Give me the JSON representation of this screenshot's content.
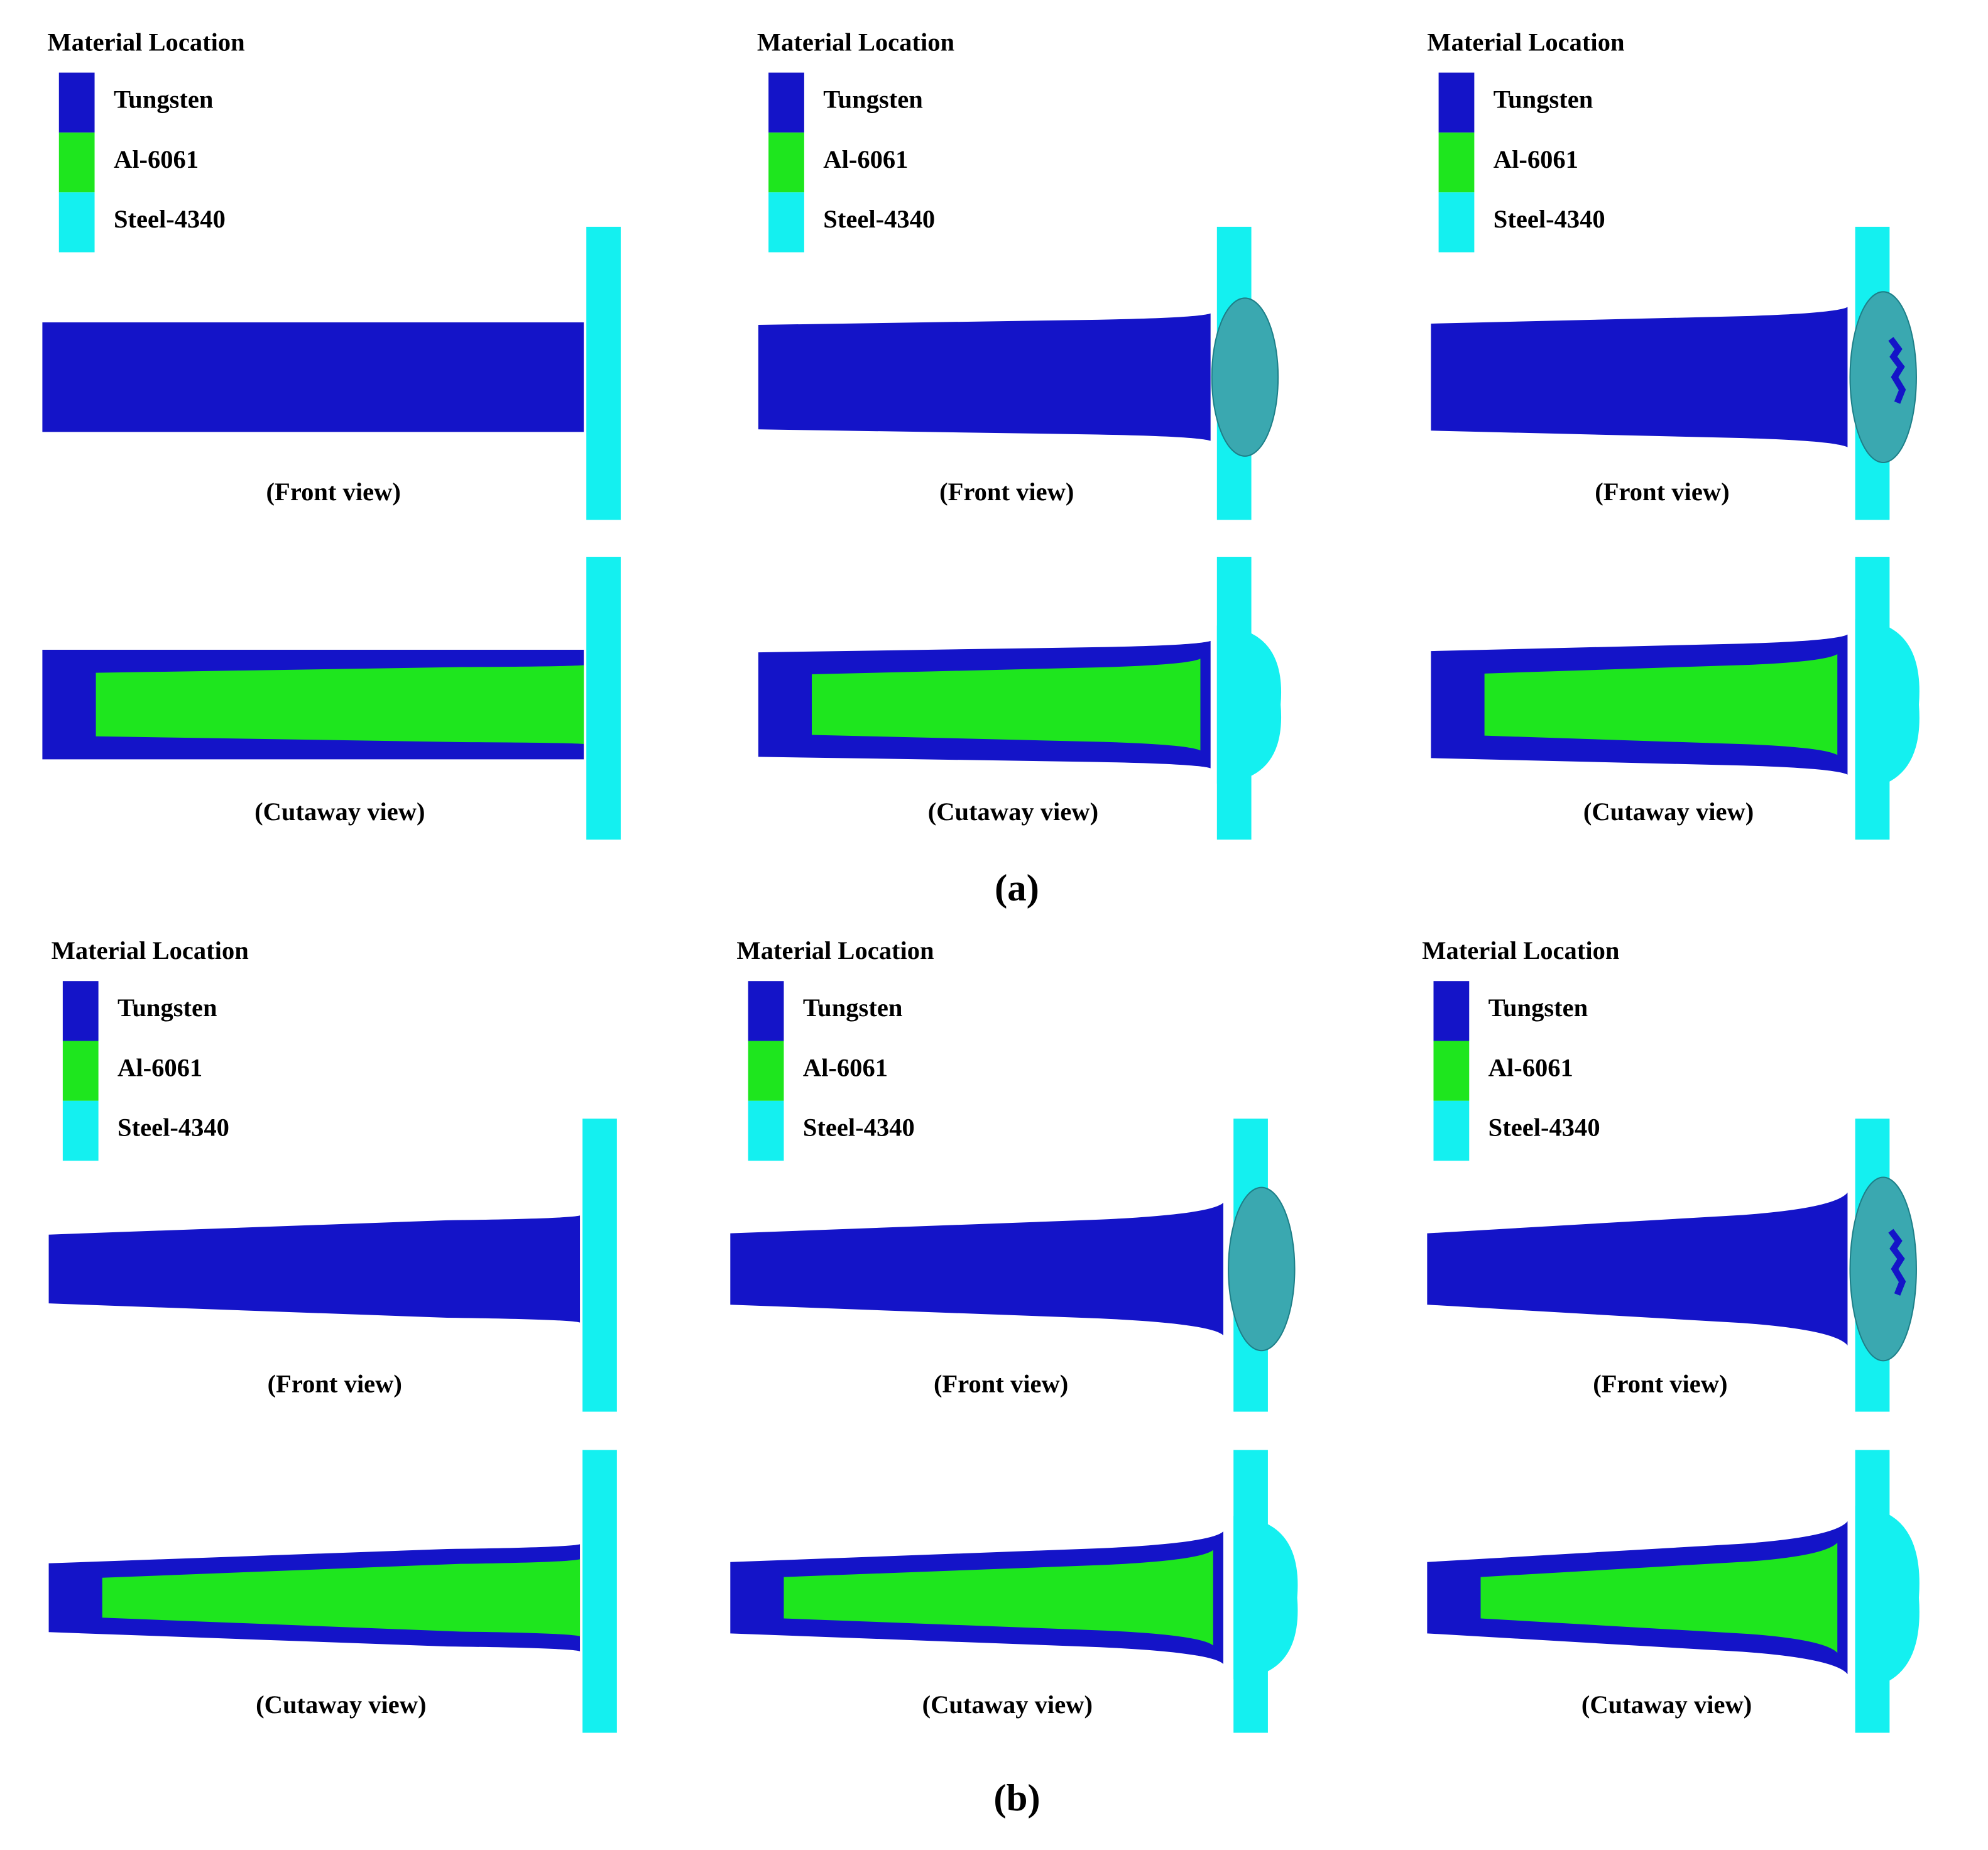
{
  "panels": [
    {
      "label": "(a)",
      "frames": [
        {
          "legend_title": "Material Location",
          "legend": [
            {
              "name": "Tungsten",
              "color": "#1414c8"
            },
            {
              "name": "Al-6061",
              "color": "#1ee61e"
            },
            {
              "name": "Steel-4340",
              "color": "#14f0f0"
            }
          ],
          "front_caption": "(Front view)",
          "cutaway_caption": "(Cutaway view)"
        },
        {
          "legend_title": "Material Location",
          "legend": [
            {
              "name": "Tungsten",
              "color": "#1414c8"
            },
            {
              "name": "Al-6061",
              "color": "#1ee61e"
            },
            {
              "name": "Steel-4340",
              "color": "#14f0f0"
            }
          ],
          "front_caption": "(Front view)",
          "cutaway_caption": "(Cutaway view)"
        },
        {
          "legend_title": "Material Location",
          "legend": [
            {
              "name": "Tungsten",
              "color": "#1414c8"
            },
            {
              "name": "Al-6061",
              "color": "#1ee61e"
            },
            {
              "name": "Steel-4340",
              "color": "#14f0f0"
            }
          ],
          "front_caption": "(Front view)",
          "cutaway_caption": "(Cutaway view)"
        }
      ]
    },
    {
      "label": "(b)",
      "frames": [
        {
          "legend_title": "Material Location",
          "legend": [
            {
              "name": "Tungsten",
              "color": "#1414c8"
            },
            {
              "name": "Al-6061",
              "color": "#1ee61e"
            },
            {
              "name": "Steel-4340",
              "color": "#14f0f0"
            }
          ],
          "front_caption": "(Front view)",
          "cutaway_caption": "(Cutaway view)"
        },
        {
          "legend_title": "Material Location",
          "legend": [
            {
              "name": "Tungsten",
              "color": "#1414c8"
            },
            {
              "name": "Al-6061",
              "color": "#1ee61e"
            },
            {
              "name": "Steel-4340",
              "color": "#14f0f0"
            }
          ],
          "front_caption": "(Front view)",
          "cutaway_caption": "(Cutaway view)"
        },
        {
          "legend_title": "Material Location",
          "legend": [
            {
              "name": "Tungsten",
              "color": "#1414c8"
            },
            {
              "name": "Al-6061",
              "color": "#1ee61e"
            },
            {
              "name": "Steel-4340",
              "color": "#14f0f0"
            }
          ],
          "front_caption": "(Front view)",
          "cutaway_caption": "(Cutaway view)"
        }
      ]
    }
  ]
}
